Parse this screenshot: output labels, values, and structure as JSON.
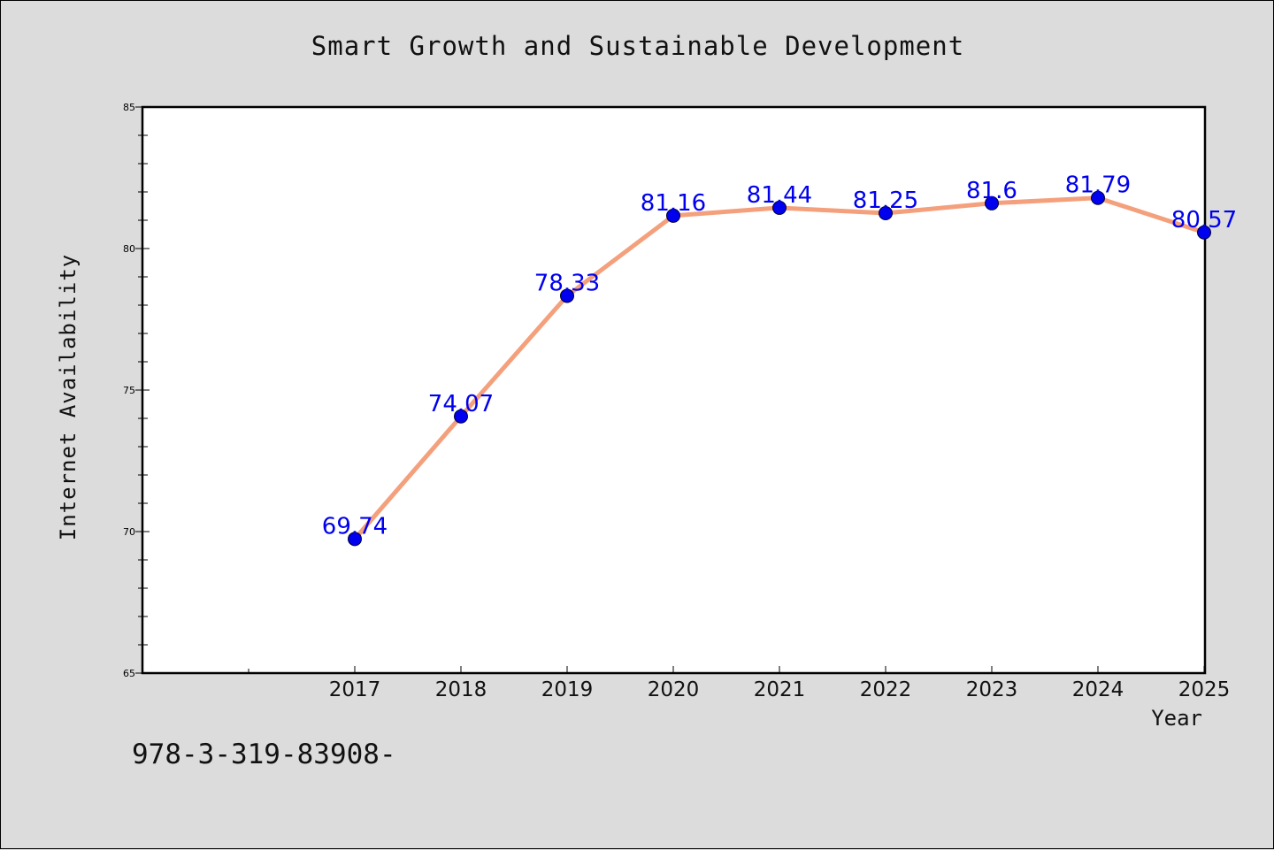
{
  "chart_data": {
    "type": "line",
    "title": "Smart Growth and Sustainable Development",
    "xlabel": "Year",
    "ylabel": "Internet Availability",
    "x": [
      "2017",
      "2018",
      "2019",
      "2020",
      "2021",
      "2022",
      "2023",
      "2024",
      "2025"
    ],
    "series": [
      {
        "values": [
          69.74,
          74.07,
          78.33,
          81.16,
          81.44,
          81.25,
          81.6,
          81.79,
          80.57
        ],
        "line_color": "#f4a07c",
        "marker_color": "#0000ee"
      }
    ],
    "data_labels": [
      "69.74",
      "74.07",
      "78.33",
      "81.16",
      "81.44",
      "81.25",
      "81.6",
      "81.79",
      "80.57"
    ],
    "ylim": [
      65,
      85
    ],
    "y_ticks": [
      65,
      70,
      75,
      80,
      85
    ],
    "grid": false,
    "legend": "none"
  },
  "footnote": "978-3-319-83908-"
}
